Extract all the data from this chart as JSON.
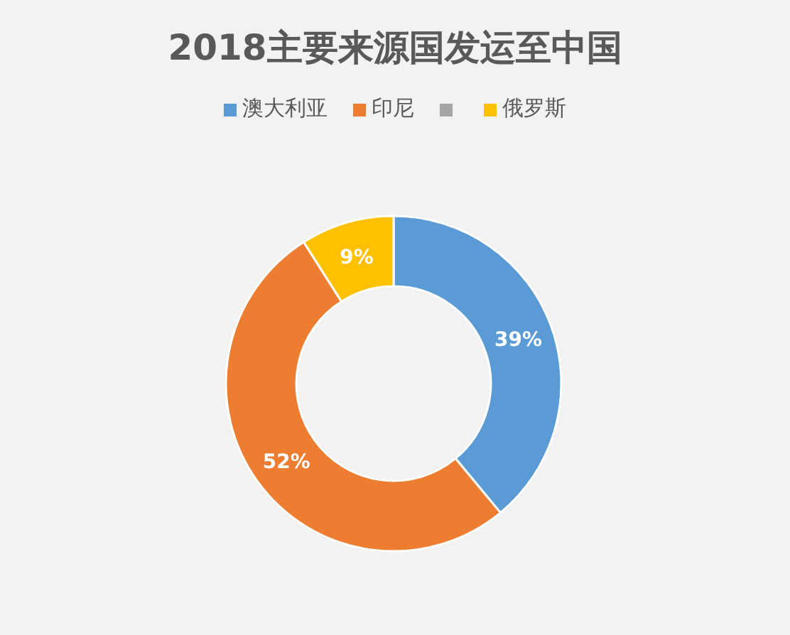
{
  "chart_data": {
    "type": "donut",
    "title": "2018主要来源国发运至中国",
    "categories": [
      "澳大利亚",
      "印尼",
      null,
      "俄罗斯"
    ],
    "values": [
      39,
      52,
      0,
      9
    ],
    "colors": [
      "#5b9bd5",
      "#ed7d31",
      "#a5a5a5",
      "#ffc000"
    ],
    "value_labels": [
      "39%",
      "52%",
      null,
      "9%"
    ],
    "legend": "top"
  }
}
